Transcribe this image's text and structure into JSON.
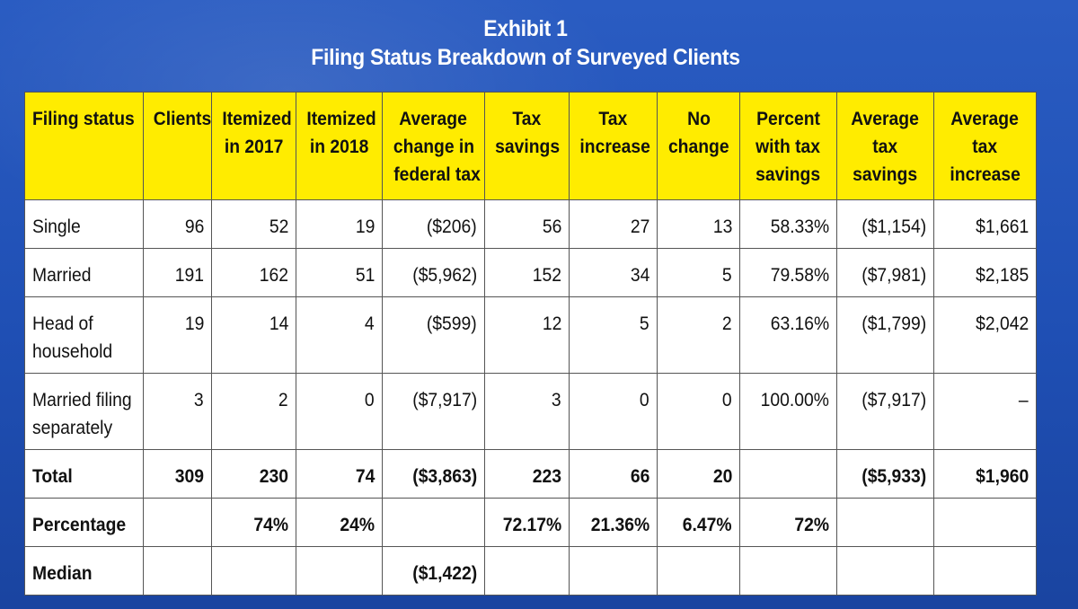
{
  "exhibit": {
    "title": "Exhibit 1",
    "subtitle": "Filing Status Breakdown of Surveyed Clients",
    "columns": [
      [
        "Filing status"
      ],
      [
        "Clients"
      ],
      [
        "Itemized",
        "in 2017"
      ],
      [
        "Itemized",
        "in 2018"
      ],
      [
        "Average",
        "change in",
        "federal tax"
      ],
      [
        "Tax",
        "savings"
      ],
      [
        "Tax",
        "increase"
      ],
      [
        "No",
        "change"
      ],
      [
        "Percent",
        "with tax",
        "savings"
      ],
      [
        "Average",
        "tax",
        "savings"
      ],
      [
        "Average",
        "tax",
        "increase"
      ]
    ],
    "rows": [
      {
        "label": [
          "Single"
        ],
        "values": [
          "96",
          "52",
          "19",
          "($206)",
          "56",
          "27",
          "13",
          "58.33%",
          "($1,154)",
          "$1,661"
        ]
      },
      {
        "label": [
          "Married"
        ],
        "values": [
          "191",
          "162",
          "51",
          "($5,962)",
          "152",
          "34",
          "5",
          "79.58%",
          "($7,981)",
          "$2,185"
        ]
      },
      {
        "label": [
          "Head of",
          "household"
        ],
        "values": [
          "19",
          "14",
          "4",
          "($599)",
          "12",
          "5",
          "2",
          "63.16%",
          "($1,799)",
          "$2,042"
        ]
      },
      {
        "label": [
          "Married filing",
          "separately"
        ],
        "values": [
          "3",
          "2",
          "0",
          "($7,917)",
          "3",
          "0",
          "0",
          "100.00%",
          "($7,917)",
          "–"
        ]
      }
    ],
    "total": {
      "label": "Total",
      "values": [
        "309",
        "230",
        "74",
        "($3,863)",
        "223",
        "66",
        "20",
        "",
        "($5,933)",
        "$1,960"
      ]
    },
    "percentage": {
      "label": "Percentage",
      "values": [
        "",
        "74%",
        "24%",
        "",
        "72.17%",
        "21.36%",
        "6.47%",
        "72%",
        "",
        ""
      ]
    },
    "median": {
      "label": "Median",
      "values": [
        "",
        "",
        "",
        "($1,422)",
        "",
        "",
        "",
        "",
        "",
        ""
      ]
    }
  }
}
